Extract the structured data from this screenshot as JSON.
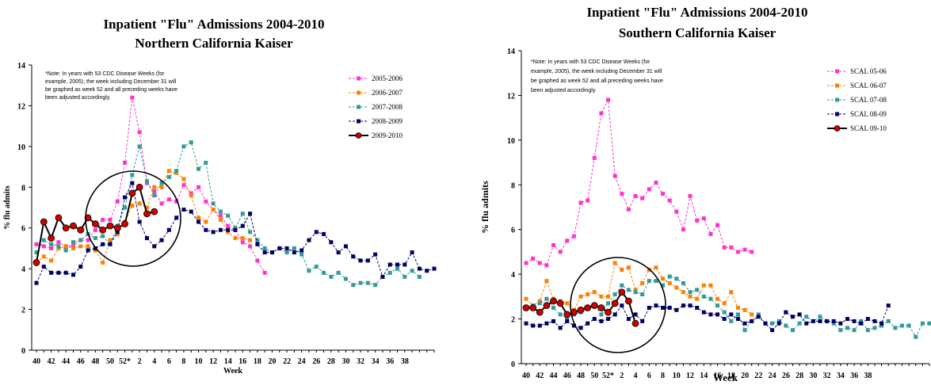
{
  "chart_data": [
    {
      "type": "line",
      "title": "Inpatient \"Flu\" Admissions 2004-2010",
      "subtitle": "Northern California Kaiser",
      "xlabel": "Week",
      "ylabel": "% flu admits",
      "ylim": [
        0,
        14
      ],
      "yticks": [
        "0",
        "2",
        "4",
        "6",
        "8",
        "10",
        "12",
        "14"
      ],
      "x_tick_labels": [
        "40",
        "42",
        "44",
        "46",
        "48",
        "50",
        "52*",
        "2",
        "4",
        "6",
        "8",
        "10",
        "12",
        "14",
        "16",
        "18",
        "20",
        "22",
        "24",
        "26",
        "28",
        "30",
        "32",
        "34",
        "36",
        "38"
      ],
      "note": [
        "*Note: In years with 53 CDC Disease Weeks (for",
        "example, 2005), the week including December 31 will",
        "be graphed as week 52 and all preceding weeks have",
        "been adjusted accordingly."
      ],
      "legend_position": "top-right",
      "grid": false,
      "circle_annotation": true,
      "series": [
        {
          "name": "2005-2006",
          "color": "#ff33cc",
          "dashed": true,
          "marker": "square",
          "values": [
            5.2,
            5.1,
            5.0,
            5.3,
            5.1,
            5.1,
            5.4,
            5.4,
            5.9,
            6.4,
            6.4,
            7.3,
            9.2,
            12.4,
            10.7,
            8.2,
            7.8,
            7.2,
            7.4,
            7.3,
            8.1,
            7.7,
            8.0,
            7.3,
            6.9,
            6.6,
            6.1,
            5.9,
            5.3,
            5.1,
            4.4,
            3.8
          ]
        },
        {
          "name": "2006-2007",
          "color": "#ff8000",
          "dashed": true,
          "marker": "square",
          "values": [
            4.3,
            4.6,
            4.4,
            5.0,
            5.1,
            5.0,
            5.1,
            5.1,
            4.9,
            4.3,
            5.4,
            5.7,
            6.3,
            7.1,
            7.2,
            7.0,
            8.0,
            8.0,
            8.8,
            8.7,
            8.4,
            7.6,
            6.5,
            6.3,
            6.9,
            6.4,
            5.8,
            5.5,
            5.5,
            5.4
          ]
        },
        {
          "name": "2007-2008",
          "color": "#339999",
          "dashed": true,
          "marker": "square",
          "values": [
            4.8,
            5.4,
            5.2,
            5.1,
            4.9,
            5.3,
            5.4,
            5.7,
            5.5,
            5.6,
            5.2,
            6.1,
            7.0,
            8.6,
            10.0,
            8.3,
            7.6,
            8.2,
            8.5,
            8.8,
            10.0,
            10.2,
            8.9,
            9.2,
            7.2,
            6.8,
            6.6,
            6.0,
            6.7,
            5.8,
            5.4,
            5.0,
            4.8,
            5.0,
            4.8,
            5.0,
            4.7,
            3.9,
            4.1,
            3.8,
            3.6,
            3.8,
            3.5,
            3.2,
            3.3,
            3.3,
            3.2,
            3.6,
            3.8,
            4.0,
            3.6,
            3.9,
            3.6
          ]
        },
        {
          "name": "2008-2009",
          "color": "#000066",
          "dashed": true,
          "marker": "square",
          "values": [
            3.3,
            4.1,
            3.8,
            3.8,
            3.8,
            3.7,
            4.1,
            4.9,
            5.0,
            5.2,
            5.2,
            5.8,
            7.5,
            8.2,
            6.3,
            5.5,
            5.1,
            5.4,
            5.9,
            6.5,
            6.9,
            6.8,
            6.3,
            5.9,
            5.8,
            5.9,
            5.9,
            5.9,
            6.1,
            6.7,
            5.2,
            4.8,
            4.8,
            5.0,
            5.0,
            4.8,
            4.9,
            5.4,
            5.8,
            5.7,
            5.3,
            4.8,
            5.1,
            4.6,
            4.4,
            4.4,
            4.7,
            3.6,
            4.2,
            4.2,
            4.2,
            4.8,
            4.0,
            3.9,
            4.0
          ]
        },
        {
          "name": "2009-2010",
          "color": "#cc0000",
          "dashed": false,
          "marker": "circle",
          "values": [
            4.3,
            6.3,
            5.5,
            6.5,
            6.0,
            6.1,
            5.9,
            6.5,
            6.2,
            5.9,
            6.1,
            6.0,
            6.2,
            7.7,
            8.0,
            6.7,
            6.8
          ]
        }
      ]
    },
    {
      "type": "line",
      "title": "Inpatient \"Flu\" Admissions 2004-2010",
      "subtitle": "Southern California Kaiser",
      "xlabel": "Week",
      "ylabel": "% flu admits",
      "ylim": [
        0,
        14
      ],
      "yticks": [
        "0",
        "2",
        "4",
        "6",
        "8",
        "10",
        "12",
        "14"
      ],
      "x_tick_labels": [
        "40",
        "42",
        "44",
        "46",
        "48",
        "50",
        "52*",
        "2",
        "4",
        "6",
        "8",
        "10",
        "12",
        "14",
        "16",
        "18",
        "20",
        "22",
        "24",
        "26",
        "28",
        "30",
        "32",
        "34",
        "36",
        "38"
      ],
      "note": [
        "*Note: In years with 53 CDC Disease Weeks (for",
        "example, 2005), the week including December 31 will",
        "be graphed as week 52 and all preceding weeks have",
        "been adjusted accordingly."
      ],
      "legend_position": "top-right",
      "grid": false,
      "circle_annotation": true,
      "series": [
        {
          "name": "SCAL 05-06",
          "color": "#ff33cc",
          "dashed": true,
          "marker": "square",
          "values": [
            4.5,
            4.7,
            4.5,
            4.4,
            5.3,
            5.0,
            5.5,
            5.7,
            7.2,
            7.3,
            9.2,
            11.2,
            11.8,
            8.4,
            7.6,
            6.9,
            7.5,
            7.4,
            7.8,
            8.1,
            7.6,
            7.3,
            6.8,
            6.0,
            7.5,
            6.4,
            6.5,
            5.8,
            6.2,
            5.2,
            5.2,
            5.0,
            5.1,
            5.0
          ]
        },
        {
          "name": "SCAL 06-07",
          "color": "#ff8000",
          "dashed": true,
          "marker": "square",
          "values": [
            2.9,
            2.6,
            2.8,
            3.7,
            2.9,
            2.8,
            2.7,
            2.4,
            3.0,
            3.1,
            3.2,
            3.0,
            3.0,
            4.5,
            4.2,
            4.3,
            3.3,
            3.6,
            4.2,
            4.3,
            3.8,
            3.6,
            3.4,
            3.2,
            3.0,
            2.9,
            3.5,
            3.5,
            2.9,
            2.7,
            3.2,
            2.5,
            2.4,
            2.2
          ]
        },
        {
          "name": "SCAL 07-08",
          "color": "#339999",
          "dashed": true,
          "marker": "square",
          "values": [
            2.5,
            2.6,
            2.7,
            2.9,
            2.5,
            2.2,
            2.0,
            2.2,
            2.3,
            2.5,
            2.6,
            2.2,
            2.7,
            3.1,
            3.5,
            3.3,
            3.2,
            3.1,
            3.7,
            3.7,
            3.5,
            3.9,
            3.8,
            3.6,
            3.2,
            3.3,
            3.0,
            2.9,
            2.6,
            2.3,
            1.9,
            2.2,
            1.5,
            1.9,
            2.2,
            1.8,
            1.8,
            1.9,
            1.7,
            1.5,
            1.8,
            2.1,
            1.9,
            2.1,
            1.9,
            1.8,
            1.5,
            1.6,
            1.5,
            1.9,
            1.5,
            1.6,
            1.7,
            1.9,
            1.6,
            1.7,
            1.7,
            1.2,
            1.8,
            1.8
          ]
        },
        {
          "name": "SCAL 08-09",
          "color": "#000066",
          "dashed": true,
          "marker": "square",
          "values": [
            1.8,
            1.7,
            1.7,
            1.8,
            1.9,
            1.6,
            1.9,
            1.7,
            1.6,
            1.8,
            2.0,
            1.9,
            2.0,
            2.2,
            2.6,
            2.0,
            2.2,
            1.9,
            2.5,
            2.6,
            2.5,
            2.5,
            2.4,
            2.6,
            2.6,
            2.5,
            2.3,
            2.2,
            2.2,
            2.0,
            2.2,
            2.0,
            1.8,
            1.9,
            2.1,
            1.8,
            1.5,
            1.8,
            2.3,
            2.1,
            2.2,
            1.8,
            1.9,
            1.9,
            1.9,
            1.9,
            1.8,
            2.0,
            1.9,
            1.8,
            2.0,
            1.9,
            1.8,
            2.6
          ]
        },
        {
          "name": "SCAL 09-10",
          "color": "#cc0000",
          "dashed": false,
          "marker": "circle",
          "values": [
            2.5,
            2.5,
            2.3,
            2.6,
            2.8,
            2.7,
            2.2,
            2.3,
            2.4,
            2.5,
            2.6,
            2.5,
            2.3,
            2.7,
            3.2,
            2.8,
            1.8
          ]
        }
      ]
    }
  ]
}
